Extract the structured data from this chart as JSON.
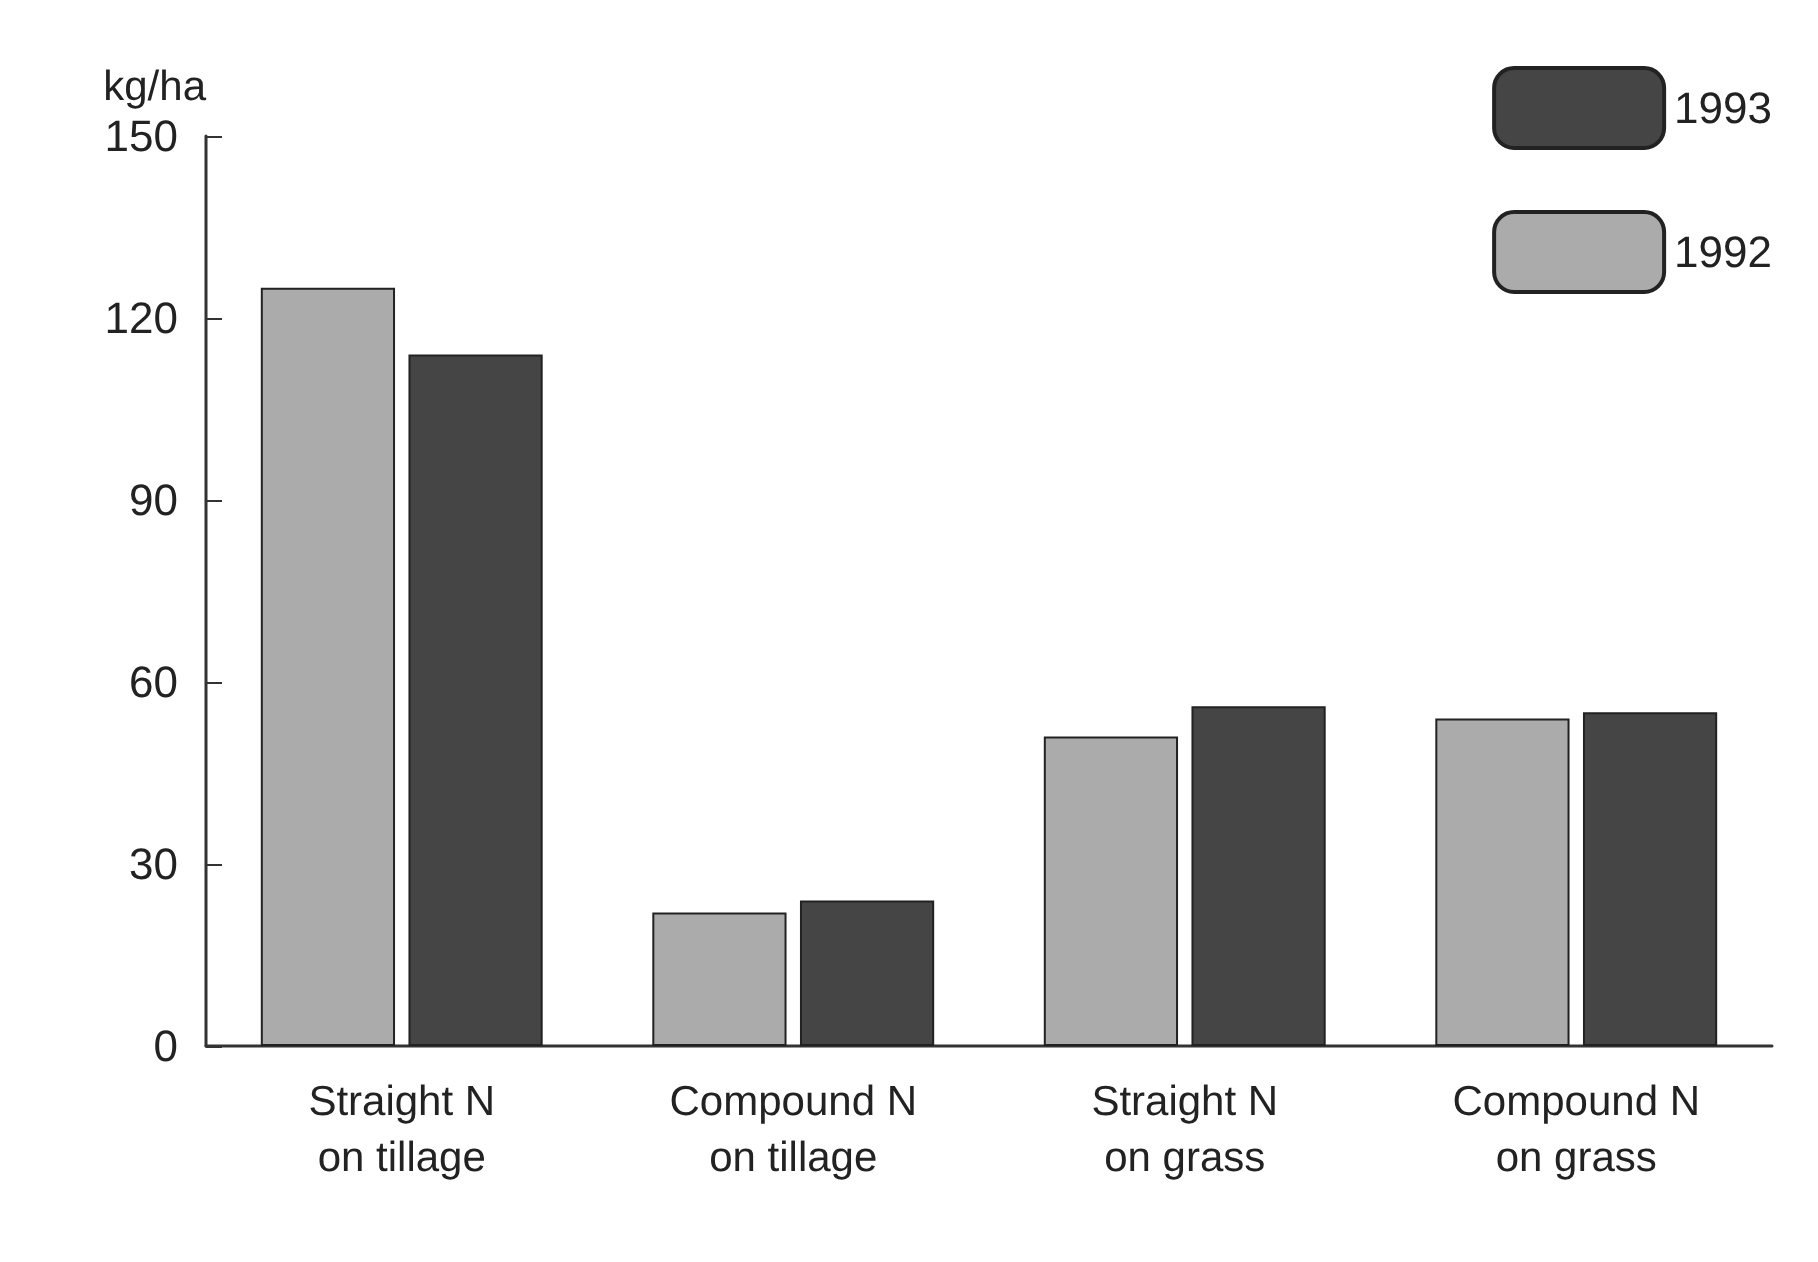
{
  "chart_data": {
    "type": "bar",
    "ylabel": "kg/ha",
    "categories": [
      "Straight N\non tillage",
      "Compound N\non tillage",
      "Straight N\non grass",
      "Compound N\non grass"
    ],
    "series": [
      {
        "name": "1992",
        "color": "#ababab",
        "values": [
          125,
          22,
          51,
          54
        ]
      },
      {
        "name": "1993",
        "color": "#454545",
        "values": [
          114,
          24,
          56,
          55
        ]
      }
    ],
    "ylim": [
      0,
      150
    ],
    "yticks": [
      0,
      30,
      60,
      90,
      120,
      150
    ],
    "grid": false,
    "legend": "top right"
  }
}
